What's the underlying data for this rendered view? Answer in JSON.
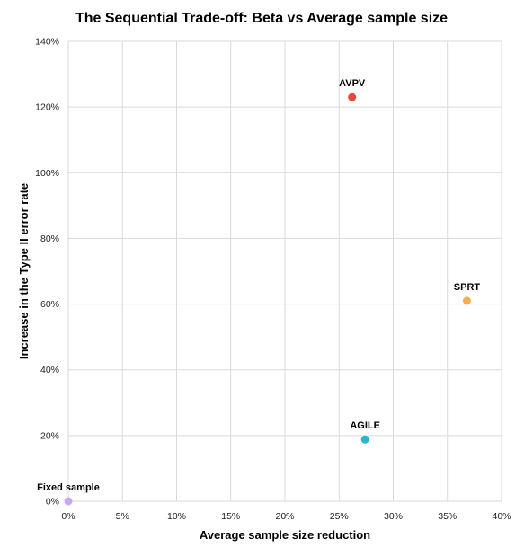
{
  "chart_data": {
    "type": "scatter",
    "title": "The Sequential Trade-off: Beta vs Average sample size",
    "xlabel": "Average sample size reduction",
    "ylabel": "Increase in the Type II error rate",
    "xlim": [
      0,
      40
    ],
    "ylim": [
      0,
      140
    ],
    "x_ticks": [
      0,
      5,
      10,
      15,
      20,
      25,
      30,
      35,
      40
    ],
    "y_ticks": [
      0,
      20,
      40,
      60,
      80,
      100,
      120,
      140
    ],
    "x_tick_labels": [
      "0%",
      "5%",
      "10%",
      "15%",
      "20%",
      "25%",
      "30%",
      "35%",
      "40%"
    ],
    "y_tick_labels": [
      "0%",
      "20%",
      "40%",
      "60%",
      "80%",
      "100%",
      "120%",
      "140%"
    ],
    "grid": true,
    "legend": "none",
    "points": [
      {
        "label": "Fixed sample",
        "x": 0.0,
        "y": 0.0,
        "color": "#c9a7f2"
      },
      {
        "label": "AVPV",
        "x": 26.2,
        "y": 123.0,
        "color": "#e8473a"
      },
      {
        "label": "SPRT",
        "x": 36.8,
        "y": 61.0,
        "color": "#f8ad4f"
      },
      {
        "label": "AGILE",
        "x": 27.4,
        "y": 18.8,
        "color": "#28b7c8"
      }
    ]
  }
}
